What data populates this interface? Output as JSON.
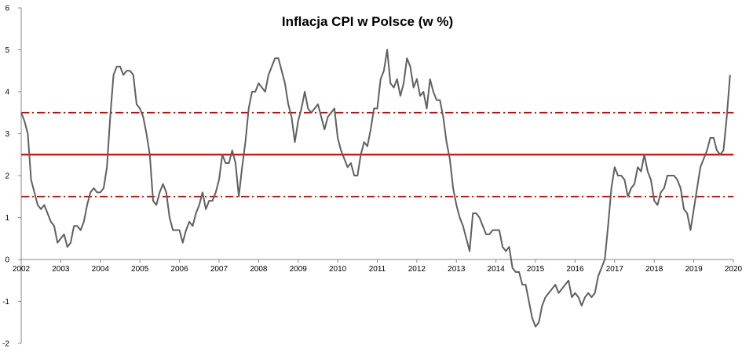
{
  "chart_data": {
    "type": "line",
    "title": "Inflacja CPI w Polsce (w %)",
    "xlabel": "",
    "ylabel": "",
    "ylim": [
      -2,
      6
    ],
    "y_ticks": [
      "-2",
      "-1",
      "0",
      "1",
      "2",
      "3",
      "4",
      "5",
      "6"
    ],
    "x_ticks": [
      "2002",
      "2003",
      "2004",
      "2005",
      "2006",
      "2007",
      "2008",
      "2009",
      "2010",
      "2011",
      "2012",
      "2013",
      "2014",
      "2015",
      "2016",
      "2017",
      "2018",
      "2019",
      "2020"
    ],
    "xlim": [
      2002,
      2020
    ],
    "grid": false,
    "legend": "none",
    "reference_lines": [
      {
        "value": 2.5,
        "style": "solid",
        "color": "#e00000"
      },
      {
        "value": 3.5,
        "style": "dash-dot",
        "color": "#e00000"
      },
      {
        "value": 1.5,
        "style": "dash-dot",
        "color": "#e00000"
      }
    ],
    "series": [
      {
        "color": "#606060",
        "start": 2002.0,
        "step_months": 1,
        "values": [
          3.5,
          3.3,
          3.0,
          1.9,
          1.6,
          1.3,
          1.2,
          1.3,
          1.1,
          0.9,
          0.8,
          0.4,
          0.5,
          0.6,
          0.3,
          0.4,
          0.8,
          0.8,
          0.7,
          0.9,
          1.3,
          1.6,
          1.7,
          1.6,
          1.6,
          1.7,
          2.2,
          3.4,
          4.4,
          4.6,
          4.6,
          4.4,
          4.5,
          4.5,
          4.4,
          3.7,
          3.6,
          3.4,
          3.0,
          2.5,
          1.4,
          1.3,
          1.6,
          1.8,
          1.6,
          1.0,
          0.7,
          0.7,
          0.7,
          0.4,
          0.7,
          0.9,
          0.8,
          1.1,
          1.3,
          1.6,
          1.2,
          1.4,
          1.4,
          1.6,
          1.9,
          2.5,
          2.3,
          2.3,
          2.6,
          2.3,
          1.5,
          2.2,
          2.8,
          3.6,
          4.0,
          4.0,
          4.2,
          4.1,
          4.0,
          4.4,
          4.6,
          4.8,
          4.8,
          4.5,
          4.2,
          3.7,
          3.4,
          2.8,
          3.3,
          3.6,
          4.0,
          3.6,
          3.5,
          3.6,
          3.7,
          3.4,
          3.1,
          3.4,
          3.5,
          3.6,
          2.9,
          2.6,
          2.4,
          2.2,
          2.3,
          2.0,
          2.0,
          2.5,
          2.8,
          2.7,
          3.1,
          3.6,
          3.6,
          4.3,
          4.5,
          5.0,
          4.2,
          4.1,
          4.3,
          3.9,
          4.2,
          4.8,
          4.6,
          4.1,
          4.3,
          3.9,
          4.0,
          3.6,
          4.3,
          4.0,
          3.8,
          3.8,
          3.4,
          2.8,
          2.4,
          1.7,
          1.3,
          1.0,
          0.8,
          0.5,
          0.2,
          1.1,
          1.1,
          1.0,
          0.8,
          0.6,
          0.6,
          0.7,
          0.7,
          0.7,
          0.3,
          0.2,
          0.3,
          -0.2,
          -0.3,
          -0.3,
          -0.6,
          -0.6,
          -1.0,
          -1.4,
          -1.6,
          -1.5,
          -1.1,
          -0.9,
          -0.8,
          -0.7,
          -0.6,
          -0.8,
          -0.7,
          -0.6,
          -0.5,
          -0.9,
          -0.8,
          -0.9,
          -1.1,
          -0.9,
          -0.8,
          -0.9,
          -0.8,
          -0.4,
          -0.2,
          0.0,
          0.8,
          1.7,
          2.2,
          2.0,
          2.0,
          1.9,
          1.5,
          1.7,
          1.8,
          2.2,
          2.1,
          2.5,
          2.1,
          1.9,
          1.4,
          1.3,
          1.6,
          1.7,
          2.0,
          2.0,
          2.0,
          1.9,
          1.7,
          1.2,
          1.1,
          0.7,
          1.2,
          1.7,
          2.2,
          2.4,
          2.6,
          2.9,
          2.9,
          2.6,
          2.5,
          2.6,
          3.4,
          4.4
        ]
      }
    ]
  }
}
